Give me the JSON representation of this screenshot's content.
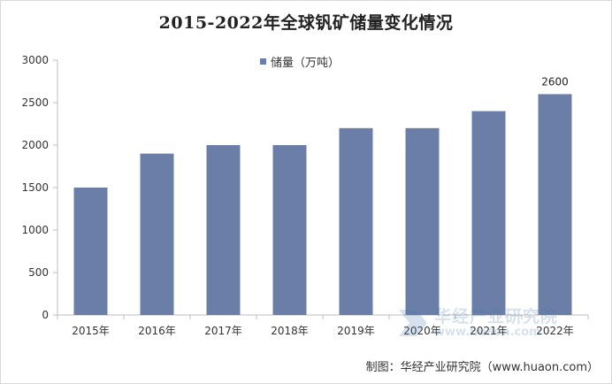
{
  "chart_data": {
    "type": "bar",
    "title": "2015-2022年全球钒矿储量变化情况",
    "categories": [
      "2015年",
      "2016年",
      "2017年",
      "2018年",
      "2019年",
      "2020年",
      "2021年",
      "2022年"
    ],
    "series": [
      {
        "name": "储量（万吨）",
        "values": [
          1500,
          1900,
          2000,
          2000,
          2200,
          2200,
          2400,
          2600
        ],
        "data_labels": [
          "",
          "",
          "",
          "",
          "",
          "",
          "",
          "2600"
        ]
      }
    ],
    "ylim": [
      0,
      3000
    ],
    "yticks": [
      "0",
      "500",
      "1000",
      "1500",
      "2000",
      "2500",
      "3000"
    ],
    "grid": false,
    "legend_position": "top-center",
    "colors": {
      "bar": "#6b7ea8",
      "axis": "#bfbfbf"
    }
  },
  "source": "制图：华经产业研究院（www.huaon.com）",
  "watermark": {
    "name": "华经产业研究院",
    "url": "www.huaon.com"
  }
}
